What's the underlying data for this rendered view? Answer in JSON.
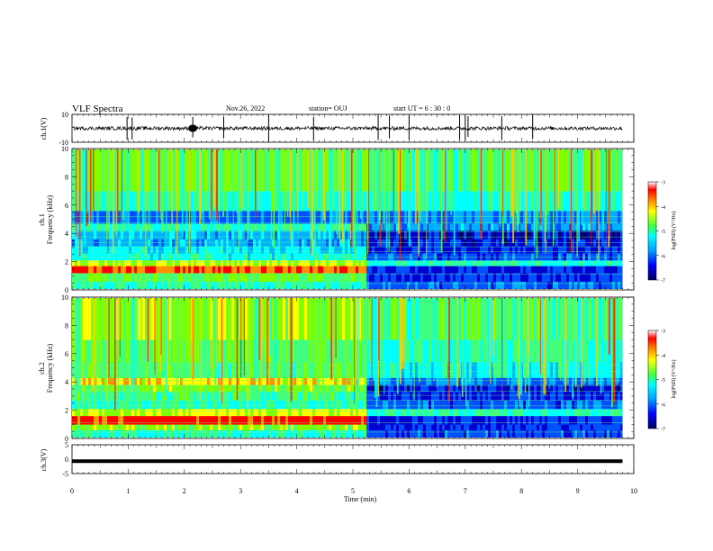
{
  "header": {
    "title": "VLF Spectra",
    "date": "Nov.26, 2022",
    "station": "station= OUJ",
    "start": "start  UT =  6 : 30 : 0"
  },
  "colors": {
    "low": "#000080",
    "mid_low": "#0060ff",
    "mid": "#00e0ff",
    "green": "#40ff40",
    "yellow": "#ffff00",
    "orange": "#ff9000",
    "high": "#ff0000",
    "top": "#ffffff"
  },
  "chart_data": [
    {
      "type": "line",
      "name": "ch1-waveform",
      "ylabel": "ch.1(V)",
      "ylim": [
        -10,
        10
      ],
      "yticks": [
        "10",
        "-10"
      ],
      "x": [
        0,
        10
      ],
      "level": 0,
      "spikes": [
        0.98,
        1.07,
        2.15,
        2.7,
        3.5,
        4.3,
        5.45,
        5.65,
        6.0,
        6.9,
        7.0,
        7.05,
        7.65,
        8.2
      ]
    },
    {
      "type": "heatmap",
      "name": "ch1-spectrogram",
      "ylabel": "ch.1\nFrequency (kHz)",
      "ylabel_lines": [
        "ch.1",
        "Frequency (kHz)"
      ],
      "xlim": [
        0,
        10
      ],
      "ylim": [
        0,
        10
      ],
      "yticks": [
        "0",
        "2",
        "4",
        "6",
        "8",
        "10"
      ],
      "colorbar": {
        "label": "log(PSD) (V²/Hz)",
        "range": [
          -7,
          -3
        ],
        "ticks": [
          "-3",
          "-4",
          "-5",
          "-6",
          "-7"
        ]
      },
      "change_time_min": 5.2,
      "data_end_min": 9.8
    },
    {
      "type": "heatmap",
      "name": "ch2-spectrogram",
      "ylabel": "ch.2\nFrequency (kHz)",
      "ylabel_lines": [
        "ch.2",
        "Frequency (kHz)"
      ],
      "xlim": [
        0,
        10
      ],
      "ylim": [
        0,
        10
      ],
      "yticks": [
        "0",
        "2",
        "4",
        "6",
        "8",
        "10"
      ],
      "colorbar": {
        "label": "log(PSD) (V²/Hz)",
        "range": [
          -7,
          -3
        ],
        "ticks": [
          "-3",
          "-4",
          "-5",
          "-6",
          "-7"
        ]
      },
      "change_time_min": 5.2,
      "data_end_min": 9.8
    },
    {
      "type": "line",
      "name": "ch3-waveform",
      "ylabel": "ch.3(V)",
      "ylim": [
        -5,
        5
      ],
      "yticks": [
        "5",
        "0",
        "-5"
      ],
      "x": [
        0,
        9.8
      ],
      "level": -0.7
    }
  ],
  "xaxis": {
    "label": "Time  (min)",
    "xlim": [
      0,
      10
    ],
    "ticks": [
      "0",
      "1",
      "2",
      "3",
      "4",
      "5",
      "6",
      "7",
      "8",
      "9",
      "10"
    ]
  }
}
